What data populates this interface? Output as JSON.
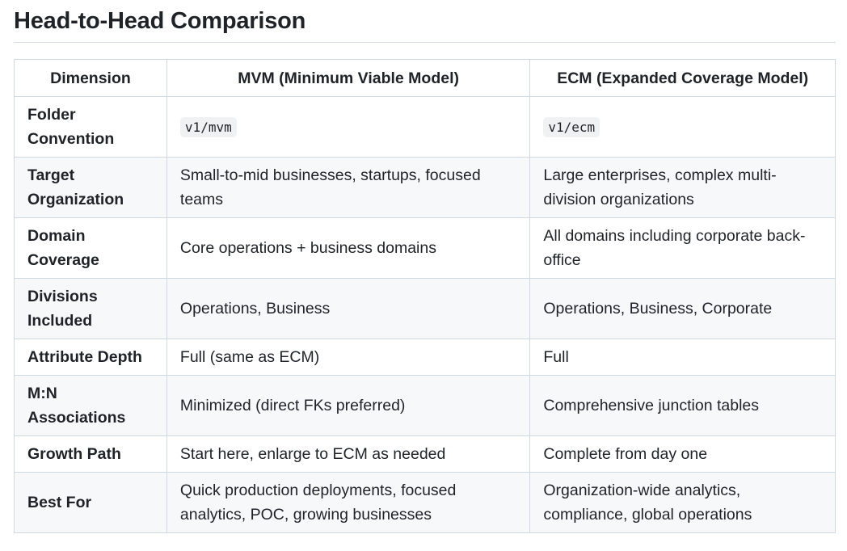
{
  "heading": "Head-to-Head Comparison",
  "table": {
    "headers": [
      "Dimension",
      "MVM (Minimum Viable Model)",
      "ECM (Expanded Coverage Model)"
    ],
    "rows": [
      {
        "dimension": "Folder Convention",
        "mvm": "v1/mvm",
        "ecm": "v1/ecm",
        "code": true
      },
      {
        "dimension": "Target Organization",
        "mvm": "Small-to-mid businesses, startups, focused teams",
        "ecm": "Large enterprises, complex multi-division organizations"
      },
      {
        "dimension": "Domain Coverage",
        "mvm": "Core operations + business domains",
        "ecm": "All domains including corporate back-office"
      },
      {
        "dimension": "Divisions Included",
        "mvm": "Operations, Business",
        "ecm": "Operations, Business, Corporate"
      },
      {
        "dimension": "Attribute Depth",
        "mvm": "Full (same as ECM)",
        "ecm": "Full"
      },
      {
        "dimension": "M:N Associations",
        "mvm": "Minimized (direct FKs preferred)",
        "ecm": "Comprehensive junction tables"
      },
      {
        "dimension": "Growth Path",
        "mvm": "Start here, enlarge to ECM as needed",
        "ecm": "Complete from day one"
      },
      {
        "dimension": "Best For",
        "mvm": "Quick production deployments, focused analytics, POC, growing businesses",
        "ecm": "Organization-wide analytics, compliance, global operations"
      }
    ]
  }
}
